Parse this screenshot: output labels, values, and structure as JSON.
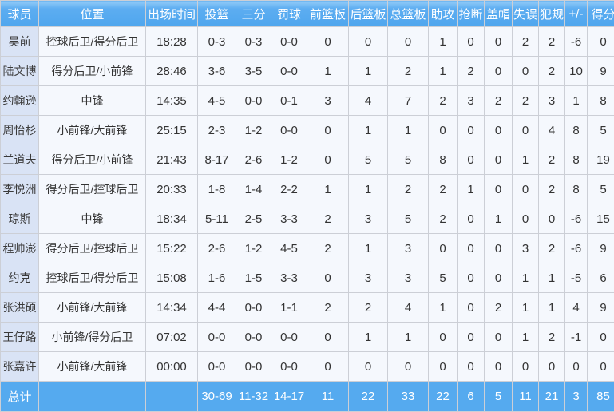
{
  "colors": {
    "header_blue_top": "#93ccf8",
    "header_blue": "#4fa6ee",
    "total_row_blue": "#55aaef",
    "name_column_bg": "#d9e3f5",
    "cell_bg": "#f5f8fd",
    "grid_border": "#cccfd6",
    "header_text": "#ffffff",
    "body_text": "#333333"
  },
  "table": {
    "columns": [
      {
        "key": "player",
        "label": "球员"
      },
      {
        "key": "position",
        "label": "位置"
      },
      {
        "key": "minutes",
        "label": "出场时间"
      },
      {
        "key": "fg",
        "label": "投篮"
      },
      {
        "key": "three",
        "label": "三分"
      },
      {
        "key": "ft",
        "label": "罚球"
      },
      {
        "key": "oreb",
        "label": "前篮板"
      },
      {
        "key": "dreb",
        "label": "后篮板"
      },
      {
        "key": "treb",
        "label": "总篮板"
      },
      {
        "key": "ast",
        "label": "助攻"
      },
      {
        "key": "stl",
        "label": "抢断"
      },
      {
        "key": "blk",
        "label": "盖帽"
      },
      {
        "key": "tov",
        "label": "失误"
      },
      {
        "key": "pf",
        "label": "犯规"
      },
      {
        "key": "plusminus",
        "label": "+/-"
      },
      {
        "key": "pts",
        "label": "得分"
      }
    ],
    "rows": [
      [
        "吴前",
        "控球后卫/得分后卫",
        "18:28",
        "0-3",
        "0-3",
        "0-0",
        "0",
        "0",
        "0",
        "1",
        "0",
        "0",
        "2",
        "2",
        "-6",
        "0"
      ],
      [
        "陆文博",
        "得分后卫/小前锋",
        "28:46",
        "3-6",
        "3-5",
        "0-0",
        "1",
        "1",
        "2",
        "1",
        "2",
        "0",
        "0",
        "2",
        "10",
        "9"
      ],
      [
        "约翰逊",
        "中锋",
        "14:35",
        "4-5",
        "0-0",
        "0-1",
        "3",
        "4",
        "7",
        "2",
        "3",
        "2",
        "2",
        "3",
        "1",
        "8"
      ],
      [
        "周怡杉",
        "小前锋/大前锋",
        "25:15",
        "2-3",
        "1-2",
        "0-0",
        "0",
        "1",
        "1",
        "0",
        "0",
        "0",
        "0",
        "4",
        "8",
        "5"
      ],
      [
        "兰道夫",
        "得分后卫/小前锋",
        "21:43",
        "8-17",
        "2-6",
        "1-2",
        "0",
        "5",
        "5",
        "8",
        "0",
        "0",
        "1",
        "2",
        "8",
        "19"
      ],
      [
        "李悦洲",
        "得分后卫/控球后卫",
        "20:33",
        "1-8",
        "1-4",
        "2-2",
        "1",
        "1",
        "2",
        "2",
        "1",
        "0",
        "0",
        "2",
        "8",
        "5"
      ],
      [
        "琼斯",
        "中锋",
        "18:34",
        "5-11",
        "2-5",
        "3-3",
        "2",
        "3",
        "5",
        "2",
        "0",
        "1",
        "0",
        "0",
        "-6",
        "15"
      ],
      [
        "程帅澎",
        "得分后卫/控球后卫",
        "15:22",
        "2-6",
        "1-2",
        "4-5",
        "2",
        "1",
        "3",
        "0",
        "0",
        "0",
        "3",
        "2",
        "-6",
        "9"
      ],
      [
        "约克",
        "控球后卫/得分后卫",
        "15:08",
        "1-6",
        "1-5",
        "3-3",
        "0",
        "3",
        "3",
        "5",
        "0",
        "0",
        "1",
        "1",
        "-5",
        "6"
      ],
      [
        "张洪硕",
        "小前锋/大前锋",
        "14:34",
        "4-4",
        "0-0",
        "1-1",
        "2",
        "2",
        "4",
        "1",
        "0",
        "2",
        "1",
        "1",
        "4",
        "9"
      ],
      [
        "王仔路",
        "小前锋/得分后卫",
        "07:02",
        "0-0",
        "0-0",
        "0-0",
        "0",
        "1",
        "1",
        "0",
        "0",
        "0",
        "1",
        "2",
        "-1",
        "0"
      ],
      [
        "张嘉许",
        "小前锋/大前锋",
        "00:00",
        "0-0",
        "0-0",
        "0-0",
        "0",
        "0",
        "0",
        "0",
        "0",
        "0",
        "0",
        "0",
        "0",
        "0"
      ]
    ],
    "total": [
      "总计",
      "",
      "",
      "30-69",
      "11-32",
      "14-17",
      "11",
      "22",
      "33",
      "22",
      "6",
      "5",
      "11",
      "21",
      "3",
      "85"
    ]
  }
}
